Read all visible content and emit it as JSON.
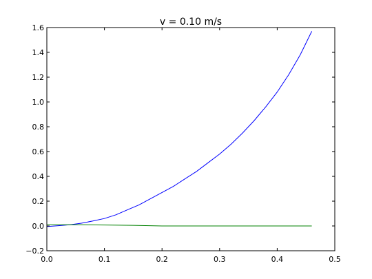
{
  "chart_data": {
    "type": "line",
    "title": "v = 0.10 m/s",
    "xlabel": "",
    "ylabel": "",
    "xlim": [
      0.0,
      0.5
    ],
    "ylim": [
      -0.2,
      1.6
    ],
    "xticks": [
      "0.0",
      "0.1",
      "0.2",
      "0.3",
      "0.4",
      "0.5"
    ],
    "yticks": [
      "−0.2",
      "0.0",
      "0.2",
      "0.4",
      "0.6",
      "0.8",
      "1.0",
      "1.2",
      "1.4",
      "1.6"
    ],
    "grid": false,
    "legend": "none",
    "series": [
      {
        "color": "#0000ff",
        "x": [
          0.0,
          0.02,
          0.04,
          0.06,
          0.08,
          0.1,
          0.12,
          0.14,
          0.16,
          0.18,
          0.2,
          0.22,
          0.24,
          0.26,
          0.28,
          0.3,
          0.32,
          0.34,
          0.36,
          0.38,
          0.4,
          0.42,
          0.44,
          0.46
        ],
        "y": [
          -0.005,
          0.002,
          0.01,
          0.022,
          0.04,
          0.06,
          0.09,
          0.13,
          0.17,
          0.22,
          0.27,
          0.32,
          0.38,
          0.44,
          0.51,
          0.58,
          0.66,
          0.75,
          0.85,
          0.96,
          1.08,
          1.22,
          1.38,
          1.57
        ]
      },
      {
        "color": "#008000",
        "x": [
          0.0,
          0.05,
          0.1,
          0.15,
          0.2,
          0.25,
          0.3,
          0.35,
          0.4,
          0.46
        ],
        "y": [
          0.01,
          0.01,
          0.008,
          0.005,
          0.0,
          0.0,
          0.0,
          0.0,
          0.0,
          0.0
        ]
      }
    ]
  }
}
